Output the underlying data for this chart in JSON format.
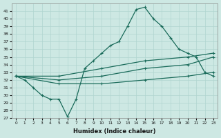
{
  "xlabel": "Humidex (Indice chaleur)",
  "ylabel": "",
  "background_color": "#cde8e3",
  "grid_color": "#b0d5cf",
  "line_color": "#1a6b5a",
  "xlim": [
    -0.5,
    23.5
  ],
  "ylim": [
    27,
    42
  ],
  "xticks": [
    0,
    1,
    2,
    3,
    4,
    5,
    6,
    7,
    8,
    9,
    10,
    11,
    12,
    13,
    14,
    15,
    16,
    17,
    18,
    19,
    20,
    21,
    22,
    23
  ],
  "yticks": [
    27,
    28,
    29,
    30,
    31,
    32,
    33,
    34,
    35,
    36,
    37,
    38,
    39,
    40,
    41
  ],
  "curve1_x": [
    0,
    1,
    2,
    3,
    4,
    5,
    6,
    7,
    8,
    9,
    10,
    11,
    12,
    13,
    14,
    15,
    16,
    17,
    18,
    19,
    20,
    21,
    22,
    23
  ],
  "curve1_y": [
    32.5,
    32.0,
    31.0,
    30.0,
    29.5,
    29.5,
    27.2,
    29.5,
    33.5,
    34.5,
    35.5,
    36.5,
    37.0,
    39.0,
    41.2,
    41.5,
    40.0,
    39.0,
    37.5,
    36.0,
    35.5,
    35.0,
    33.0,
    32.5
  ],
  "curve2_x": [
    0,
    5,
    10,
    15,
    20,
    23
  ],
  "curve2_y": [
    32.5,
    32.5,
    33.5,
    34.5,
    35.0,
    35.5
  ],
  "curve3_x": [
    0,
    5,
    10,
    15,
    20,
    23
  ],
  "curve3_y": [
    32.5,
    32.0,
    32.5,
    33.5,
    34.0,
    35.0
  ],
  "curve4_x": [
    0,
    5,
    10,
    15,
    20,
    23
  ],
  "curve4_y": [
    32.5,
    31.5,
    31.5,
    32.0,
    32.5,
    33.0
  ],
  "curve1_markers": [
    0,
    1,
    2,
    3,
    4,
    5,
    6,
    7,
    8,
    9,
    10,
    11,
    12,
    13,
    14,
    15,
    16,
    17,
    18,
    19,
    20,
    21,
    22,
    23
  ],
  "curve2_markers_x": [
    0,
    5,
    10,
    15,
    20,
    23
  ],
  "curve3_markers_x": [
    0,
    5,
    10,
    15,
    20,
    23
  ],
  "curve4_markers_x": [
    0,
    5,
    10,
    15,
    20,
    23
  ]
}
